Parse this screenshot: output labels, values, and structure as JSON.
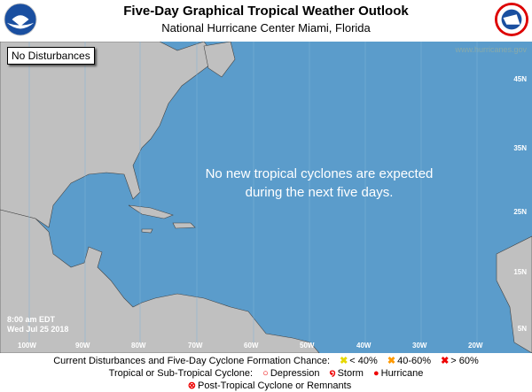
{
  "header": {
    "title": "Five-Day Graphical Tropical Weather Outlook",
    "subtitle": "National Hurricane Center  Miami, Florida",
    "left_logo": "NOAA",
    "right_logo": "National Weather Service"
  },
  "map": {
    "status_box": "No Disturbances",
    "website": "www.hurricanes.gov",
    "message_line1": "No new tropical cyclones are expected",
    "message_line2": "during the next five days.",
    "issued_time": "8:00 am EDT",
    "issued_date": "Wed Jul 25 2018",
    "lat_labels": [
      "45N",
      "35N",
      "25N",
      "15N",
      "5N"
    ],
    "lon_labels": [
      "100W",
      "90W",
      "80W",
      "70W",
      "60W",
      "50W",
      "40W",
      "30W",
      "20W"
    ],
    "colors": {
      "ocean": "#5b9ccb",
      "land": "#c0c0c0"
    }
  },
  "legend": {
    "row1_label": "Current Disturbances and Five-Day Cyclone Formation Chance:",
    "low": "< 40%",
    "medium": "40-60%",
    "high": "> 60%",
    "row2_label": "Tropical or Sub-Tropical Cyclone:",
    "depression": "Depression",
    "storm": "Storm",
    "hurricane": "Hurricane",
    "row3_label": "Post-Tropical Cyclone or Remnants",
    "colors": {
      "low": "#ffff00",
      "medium": "#ff9900",
      "high": "#ff0000"
    }
  }
}
